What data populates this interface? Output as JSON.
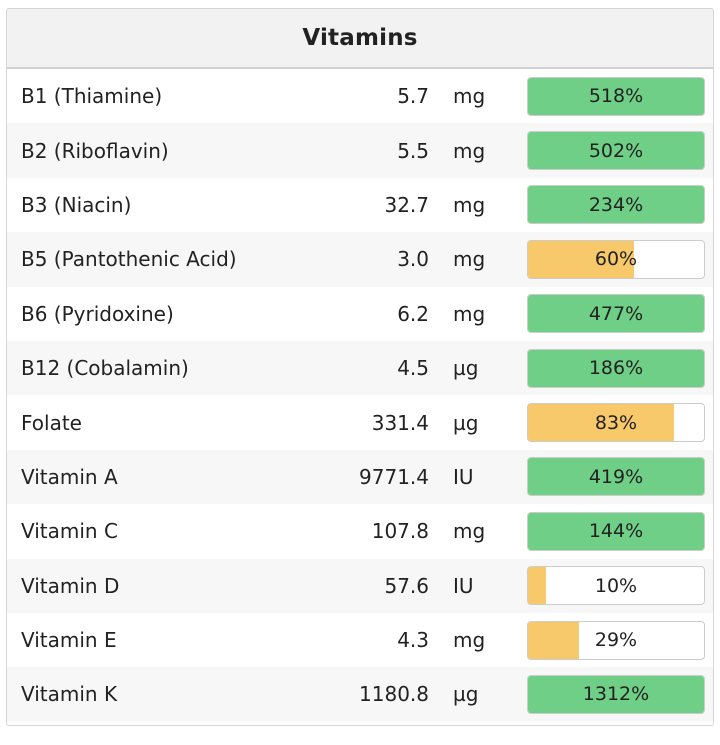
{
  "panel": {
    "title": "Vitamins"
  },
  "colors": {
    "high": "#6fcf87",
    "low": "#f7c96a",
    "empty": "#ffffff"
  },
  "vitamins": [
    {
      "name": "B1 (Thiamine)",
      "amount": "5.7",
      "unit": "mg",
      "percent_label": "518%",
      "percent": 518
    },
    {
      "name": "B2 (Riboflavin)",
      "amount": "5.5",
      "unit": "mg",
      "percent_label": "502%",
      "percent": 502
    },
    {
      "name": "B3 (Niacin)",
      "amount": "32.7",
      "unit": "mg",
      "percent_label": "234%",
      "percent": 234
    },
    {
      "name": "B5 (Pantothenic Acid)",
      "amount": "3.0",
      "unit": "mg",
      "percent_label": "60%",
      "percent": 60
    },
    {
      "name": "B6 (Pyridoxine)",
      "amount": "6.2",
      "unit": "mg",
      "percent_label": "477%",
      "percent": 477
    },
    {
      "name": "B12 (Cobalamin)",
      "amount": "4.5",
      "unit": "µg",
      "percent_label": "186%",
      "percent": 186
    },
    {
      "name": "Folate",
      "amount": "331.4",
      "unit": "µg",
      "percent_label": "83%",
      "percent": 83
    },
    {
      "name": "Vitamin A",
      "amount": "9771.4",
      "unit": "IU",
      "percent_label": "419%",
      "percent": 419
    },
    {
      "name": "Vitamin C",
      "amount": "107.8",
      "unit": "mg",
      "percent_label": "144%",
      "percent": 144
    },
    {
      "name": "Vitamin D",
      "amount": "57.6",
      "unit": "IU",
      "percent_label": "10%",
      "percent": 10
    },
    {
      "name": "Vitamin E",
      "amount": "4.3",
      "unit": "mg",
      "percent_label": "29%",
      "percent": 29
    },
    {
      "name": "Vitamin K",
      "amount": "1180.8",
      "unit": "µg",
      "percent_label": "1312%",
      "percent": 1312
    }
  ]
}
